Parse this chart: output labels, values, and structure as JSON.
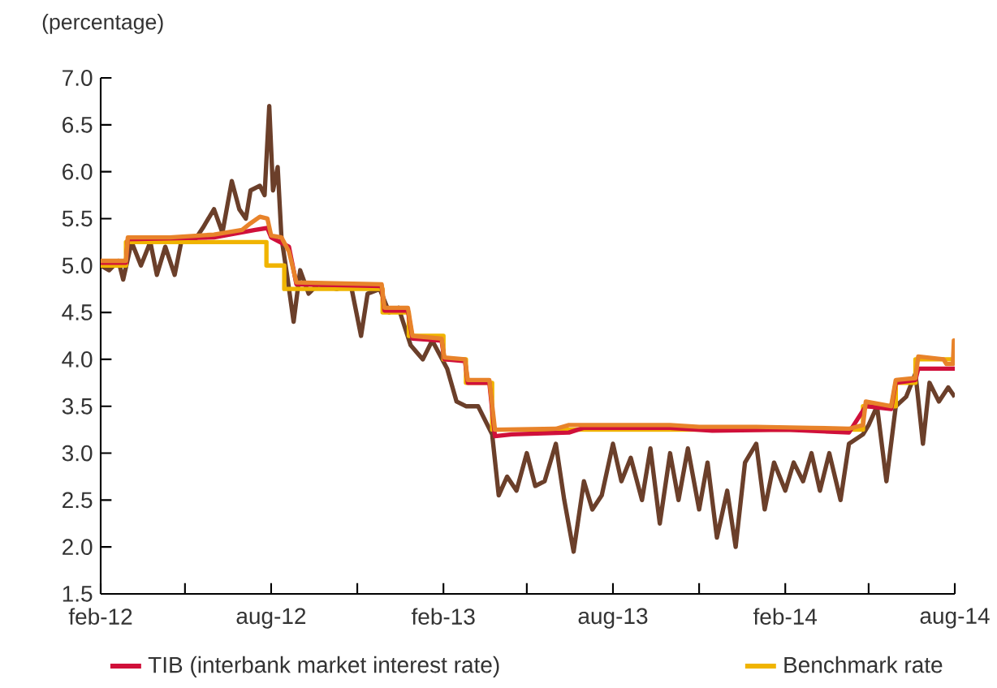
{
  "chart_data": {
    "type": "line",
    "ylabel": "(percentage)",
    "xlim": [
      "2012-02-01",
      "2014-08-01"
    ],
    "xticks": [
      {
        "value": "2012-02-01",
        "label": "feb-12"
      },
      {
        "value": "2012-05-01",
        "label": null
      },
      {
        "value": "2012-08-01",
        "label": "aug-12"
      },
      {
        "value": "2012-11-01",
        "label": null
      },
      {
        "value": "2013-02-01",
        "label": "feb-13"
      },
      {
        "value": "2013-05-01",
        "label": null
      },
      {
        "value": "2013-08-01",
        "label": "aug-13"
      },
      {
        "value": "2013-11-01",
        "label": null
      },
      {
        "value": "2014-02-01",
        "label": "feb-14"
      },
      {
        "value": "2014-05-01",
        "label": null
      },
      {
        "value": "2014-08-01",
        "label": "aug-14"
      }
    ],
    "ylim": [
      1.5,
      7.0
    ],
    "yticks": [
      {
        "value": 1.5,
        "label": "1.5"
      },
      {
        "value": 2.0,
        "label": "2.0"
      },
      {
        "value": 2.5,
        "label": "2.5"
      },
      {
        "value": 3.0,
        "label": "3.0"
      },
      {
        "value": 3.5,
        "label": "3.5"
      },
      {
        "value": 4.0,
        "label": "4.0"
      },
      {
        "value": 4.5,
        "label": "4.5"
      },
      {
        "value": 5.0,
        "label": "5.0"
      },
      {
        "value": 5.5,
        "label": "5.5"
      },
      {
        "value": 6.0,
        "label": "6.0"
      },
      {
        "value": 6.5,
        "label": "6.5"
      },
      {
        "value": 7.0,
        "label": "7.0"
      }
    ],
    "legend": "bottom",
    "line_style": "solid",
    "series": [
      {
        "color": "#6b3f2a",
        "x": [
          "2012-02-01",
          "2012-02-10",
          "2012-02-20",
          "2012-02-25",
          "2012-03-05",
          "2012-03-15",
          "2012-03-25",
          "2012-04-01",
          "2012-04-10",
          "2012-04-20",
          "2012-04-28",
          "2012-05-10",
          "2012-05-20",
          "2012-06-01",
          "2012-06-10",
          "2012-06-20",
          "2012-06-28",
          "2012-07-05",
          "2012-07-10",
          "2012-07-20",
          "2012-07-25",
          "2012-07-30",
          "2012-08-03",
          "2012-08-08",
          "2012-08-12",
          "2012-08-18",
          "2012-08-25",
          "2012-09-01",
          "2012-09-10",
          "2012-09-20",
          "2012-10-10",
          "2012-10-25",
          "2012-11-05",
          "2012-11-12",
          "2012-11-25",
          "2012-12-05",
          "2012-12-15",
          "2012-12-28",
          "2013-01-10",
          "2013-01-20",
          "2013-02-05",
          "2013-02-15",
          "2013-02-25",
          "2013-03-10",
          "2013-03-25",
          "2013-04-01",
          "2013-04-10",
          "2013-04-20",
          "2013-05-01",
          "2013-05-10",
          "2013-05-20",
          "2013-06-01",
          "2013-06-10",
          "2013-06-20",
          "2013-07-01",
          "2013-07-10",
          "2013-07-20",
          "2013-08-01",
          "2013-08-10",
          "2013-08-20",
          "2013-09-01",
          "2013-09-10",
          "2013-09-20",
          "2013-10-01",
          "2013-10-10",
          "2013-10-20",
          "2013-11-01",
          "2013-11-10",
          "2013-11-20",
          "2013-12-01",
          "2013-12-10",
          "2013-12-20",
          "2014-01-01",
          "2014-01-10",
          "2014-01-20",
          "2014-02-01",
          "2014-02-10",
          "2014-02-20",
          "2014-03-01",
          "2014-03-10",
          "2014-03-20",
          "2014-04-01",
          "2014-04-10",
          "2014-04-25",
          "2014-05-01",
          "2014-05-10",
          "2014-05-20",
          "2014-05-30",
          "2014-06-10",
          "2014-06-20",
          "2014-06-28",
          "2014-07-05",
          "2014-07-15",
          "2014-07-25",
          "2014-08-01"
        ],
        "values": [
          5.0,
          4.95,
          5.05,
          4.85,
          5.25,
          5.0,
          5.25,
          4.9,
          5.2,
          4.9,
          5.3,
          5.25,
          5.4,
          5.6,
          5.35,
          5.9,
          5.6,
          5.5,
          5.8,
          5.85,
          5.75,
          6.7,
          5.8,
          6.05,
          5.3,
          4.9,
          4.4,
          4.95,
          4.7,
          4.8,
          4.75,
          4.8,
          4.25,
          4.7,
          4.75,
          4.5,
          4.55,
          4.15,
          4.0,
          4.2,
          3.9,
          3.55,
          3.5,
          3.5,
          3.2,
          2.55,
          2.75,
          2.6,
          3.0,
          2.65,
          2.7,
          3.1,
          2.5,
          1.95,
          2.7,
          2.4,
          2.55,
          3.1,
          2.7,
          2.95,
          2.5,
          3.05,
          2.25,
          3.0,
          2.5,
          3.05,
          2.4,
          2.9,
          2.1,
          2.6,
          2.0,
          2.9,
          3.1,
          2.4,
          2.9,
          2.6,
          2.9,
          2.7,
          3.0,
          2.6,
          3.0,
          2.5,
          3.1,
          3.2,
          3.3,
          3.5,
          2.7,
          3.5,
          3.6,
          3.85,
          3.1,
          3.75,
          3.55,
          3.7,
          3.6
        ]
      },
      {
        "name": "Benchmark rate",
        "type": "step",
        "color": "#f0b400",
        "x": [
          "2012-02-01",
          "2012-02-28",
          "2012-07-27",
          "2012-08-15",
          "2012-11-28",
          "2012-12-26",
          "2013-02-01",
          "2013-02-25",
          "2013-03-25",
          "2014-04-25",
          "2014-05-30",
          "2014-06-20",
          "2014-08-01"
        ],
        "values": [
          5.0,
          5.25,
          5.0,
          4.75,
          4.5,
          4.25,
          4.0,
          3.75,
          3.25,
          3.5,
          3.75,
          4.0,
          4.0
        ]
      },
      {
        "name": "TIB (interbank market interest rate)",
        "color": "#d0103a",
        "x": [
          "2012-02-01",
          "2012-02-28",
          "2012-03-01",
          "2012-06-01",
          "2012-07-15",
          "2012-07-28",
          "2012-08-01",
          "2012-08-20",
          "2012-08-28",
          "2012-11-27",
          "2012-11-30",
          "2012-12-25",
          "2012-12-30",
          "2013-01-30",
          "2013-02-02",
          "2013-02-24",
          "2013-02-27",
          "2013-03-22",
          "2013-03-28",
          "2013-04-15",
          "2013-06-15",
          "2013-07-01",
          "2013-10-01",
          "2013-11-15",
          "2014-02-01",
          "2014-04-10",
          "2014-04-28",
          "2014-05-25",
          "2014-05-30",
          "2014-06-20",
          "2014-06-23",
          "2014-08-01"
        ],
        "values": [
          5.03,
          5.03,
          5.28,
          5.3,
          5.38,
          5.4,
          5.3,
          5.2,
          4.8,
          4.78,
          4.52,
          4.52,
          4.22,
          4.2,
          4.0,
          3.98,
          3.75,
          3.75,
          3.18,
          3.2,
          3.22,
          3.27,
          3.27,
          3.24,
          3.25,
          3.22,
          3.5,
          3.47,
          3.75,
          3.78,
          3.9,
          3.9
        ]
      },
      {
        "color": "#e8832a",
        "x": [
          "2012-02-01",
          "2012-02-28",
          "2012-03-01",
          "2012-04-15",
          "2012-06-01",
          "2012-07-01",
          "2012-07-10",
          "2012-07-20",
          "2012-07-28",
          "2012-08-01",
          "2012-08-12",
          "2012-08-20",
          "2012-08-28",
          "2012-11-27",
          "2012-11-30",
          "2012-12-25",
          "2012-12-30",
          "2013-01-30",
          "2013-02-02",
          "2013-02-24",
          "2013-02-27",
          "2013-03-22",
          "2013-03-28",
          "2013-06-01",
          "2013-06-15",
          "2013-10-01",
          "2013-11-01",
          "2014-01-01",
          "2014-03-01",
          "2014-04-10",
          "2014-04-25",
          "2014-04-28",
          "2014-05-25",
          "2014-05-30",
          "2014-06-20",
          "2014-06-23",
          "2014-07-20",
          "2014-07-23",
          "2014-07-30",
          "2014-07-31",
          "2014-08-01"
        ],
        "values": [
          5.05,
          5.05,
          5.3,
          5.3,
          5.33,
          5.38,
          5.45,
          5.52,
          5.5,
          5.32,
          5.3,
          5.15,
          4.82,
          4.8,
          4.55,
          4.55,
          4.25,
          4.22,
          4.02,
          4.0,
          3.78,
          3.78,
          3.25,
          3.26,
          3.3,
          3.3,
          3.28,
          3.28,
          3.27,
          3.26,
          3.3,
          3.55,
          3.5,
          3.78,
          3.8,
          4.03,
          4.0,
          3.95,
          3.95,
          4.2,
          4.0
        ]
      }
    ]
  }
}
